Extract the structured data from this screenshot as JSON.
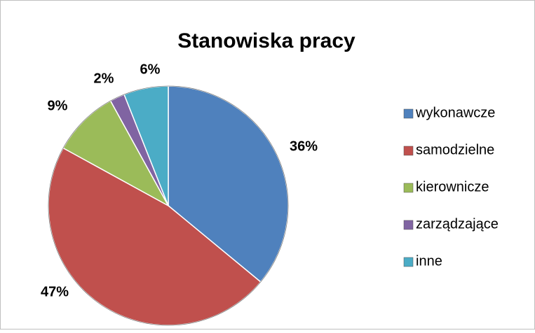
{
  "chart_data": {
    "type": "pie",
    "title": "Stanowiska pracy",
    "categories": [
      "wykonawcze",
      "samodzielne",
      "kierownicze",
      "zarządzające",
      "inne"
    ],
    "values": [
      36,
      47,
      9,
      2,
      6
    ],
    "value_labels": [
      "36%",
      "47%",
      "9%",
      "2%",
      "6%"
    ],
    "colors": [
      "#4f81bd",
      "#c0504d",
      "#9bbb59",
      "#8064a2",
      "#4bacc6"
    ],
    "legend": "right"
  }
}
